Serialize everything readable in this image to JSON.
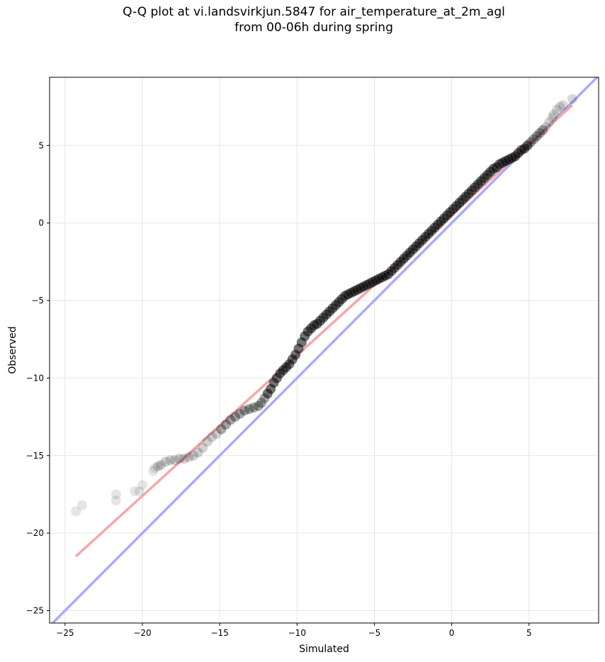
{
  "chart_data": {
    "type": "scatter",
    "title_line1": "Q-Q plot at vi.landsvirkjun.5847 for air_temperature_at_2m_agl",
    "title_line2": "from 00-06h during spring",
    "xlabel": "Simulated",
    "ylabel": "Observed",
    "xlim": [
      -26,
      9.5
    ],
    "ylim": [
      -25.8,
      9.4
    ],
    "xticks": [
      -25,
      -20,
      -15,
      -10,
      -5,
      0,
      5
    ],
    "yticks": [
      -25,
      -20,
      -15,
      -10,
      -5,
      0,
      5
    ],
    "xtick_labels": [
      "−25",
      "−20",
      "−15",
      "−10",
      "−5",
      "0",
      "5"
    ],
    "ytick_labels": [
      "−25",
      "−20",
      "−15",
      "−10",
      "−5",
      "0",
      "5"
    ],
    "grid": true,
    "colors": {
      "points": "#000000",
      "identity_line": "#aaaaff",
      "fit_line": "#f4a8a8"
    },
    "identity_line": {
      "x": [
        -26,
        9.5
      ],
      "y": [
        -26,
        9.5
      ]
    },
    "fit_line": {
      "x": [
        -24.3,
        7.8
      ],
      "y": [
        -21.5,
        7.6
      ]
    },
    "points": {
      "x": [
        -24.3,
        -23.9,
        -21.7,
        -21.7,
        -20.5,
        -20.2,
        -20.0,
        -19.3,
        -19.2,
        -19.0,
        -18.8,
        -18.5,
        -18.2,
        -17.9,
        -17.6,
        -17.3,
        -17.0,
        -16.7,
        -16.4,
        -16.1,
        -15.8,
        -15.5,
        -15.2,
        -14.9,
        -14.6,
        -14.3,
        -14.0,
        -13.7,
        -13.4,
        -13.1,
        -12.8,
        -12.5,
        -12.3,
        -12.1,
        -11.9,
        -11.7,
        -11.5,
        -11.3,
        -11.1,
        -10.9,
        -10.7,
        -10.5,
        -10.3,
        -10.1,
        -9.9,
        -9.7,
        -9.5,
        -9.3,
        -9.1,
        -8.9,
        -8.7,
        -8.5,
        -8.3,
        -8.1,
        -7.9,
        -7.7,
        -7.5,
        -7.3,
        -7.1,
        -6.9,
        -6.7,
        -6.5,
        -6.3,
        -6.1,
        -5.9,
        -5.7,
        -5.5,
        -5.3,
        -5.1,
        -4.9,
        -4.7,
        -4.5,
        -4.3,
        -4.1,
        -3.9,
        -3.7,
        -3.5,
        -3.3,
        -3.1,
        -2.9,
        -2.7,
        -2.5,
        -2.3,
        -2.1,
        -1.9,
        -1.7,
        -1.5,
        -1.3,
        -1.1,
        -0.9,
        -0.7,
        -0.5,
        -0.3,
        -0.1,
        0.1,
        0.3,
        0.5,
        0.7,
        0.9,
        1.1,
        1.3,
        1.5,
        1.7,
        1.9,
        2.1,
        2.3,
        2.5,
        2.7,
        2.9,
        3.1,
        3.3,
        3.5,
        3.7,
        3.9,
        4.1,
        4.3,
        4.5,
        4.7,
        4.9,
        5.1,
        5.3,
        5.5,
        5.7,
        5.9,
        6.1,
        6.3,
        6.5,
        6.6,
        6.8,
        7.0,
        7.2,
        7.8
      ],
      "y": [
        -18.6,
        -18.2,
        -17.9,
        -17.5,
        -17.3,
        -17.3,
        -16.9,
        -16.0,
        -15.8,
        -15.7,
        -15.6,
        -15.4,
        -15.3,
        -15.3,
        -15.2,
        -15.2,
        -15.1,
        -15.0,
        -14.8,
        -14.5,
        -14.1,
        -13.8,
        -13.6,
        -13.3,
        -13.0,
        -12.7,
        -12.5,
        -12.3,
        -12.1,
        -12.0,
        -11.9,
        -11.8,
        -11.6,
        -11.3,
        -11.0,
        -10.7,
        -10.3,
        -10.0,
        -9.7,
        -9.5,
        -9.3,
        -9.1,
        -8.8,
        -8.5,
        -8.1,
        -7.7,
        -7.3,
        -7.0,
        -6.8,
        -6.6,
        -6.5,
        -6.3,
        -6.1,
        -5.9,
        -5.7,
        -5.5,
        -5.3,
        -5.1,
        -4.9,
        -4.7,
        -4.6,
        -4.5,
        -4.4,
        -4.3,
        -4.2,
        -4.1,
        -4.0,
        -3.9,
        -3.8,
        -3.7,
        -3.6,
        -3.5,
        -3.4,
        -3.3,
        -3.1,
        -2.9,
        -2.7,
        -2.5,
        -2.3,
        -2.1,
        -1.9,
        -1.7,
        -1.5,
        -1.3,
        -1.1,
        -0.9,
        -0.7,
        -0.5,
        -0.3,
        -0.1,
        0.1,
        0.3,
        0.5,
        0.7,
        0.9,
        1.1,
        1.3,
        1.5,
        1.7,
        1.9,
        2.1,
        2.3,
        2.5,
        2.7,
        2.9,
        3.1,
        3.3,
        3.5,
        3.6,
        3.8,
        3.9,
        4.0,
        4.1,
        4.2,
        4.3,
        4.5,
        4.7,
        4.8,
        5.0,
        5.2,
        5.4,
        5.6,
        5.8,
        6.0,
        6.2,
        6.5,
        6.8,
        7.0,
        7.3,
        7.5,
        7.6,
        8.0
      ]
    }
  }
}
